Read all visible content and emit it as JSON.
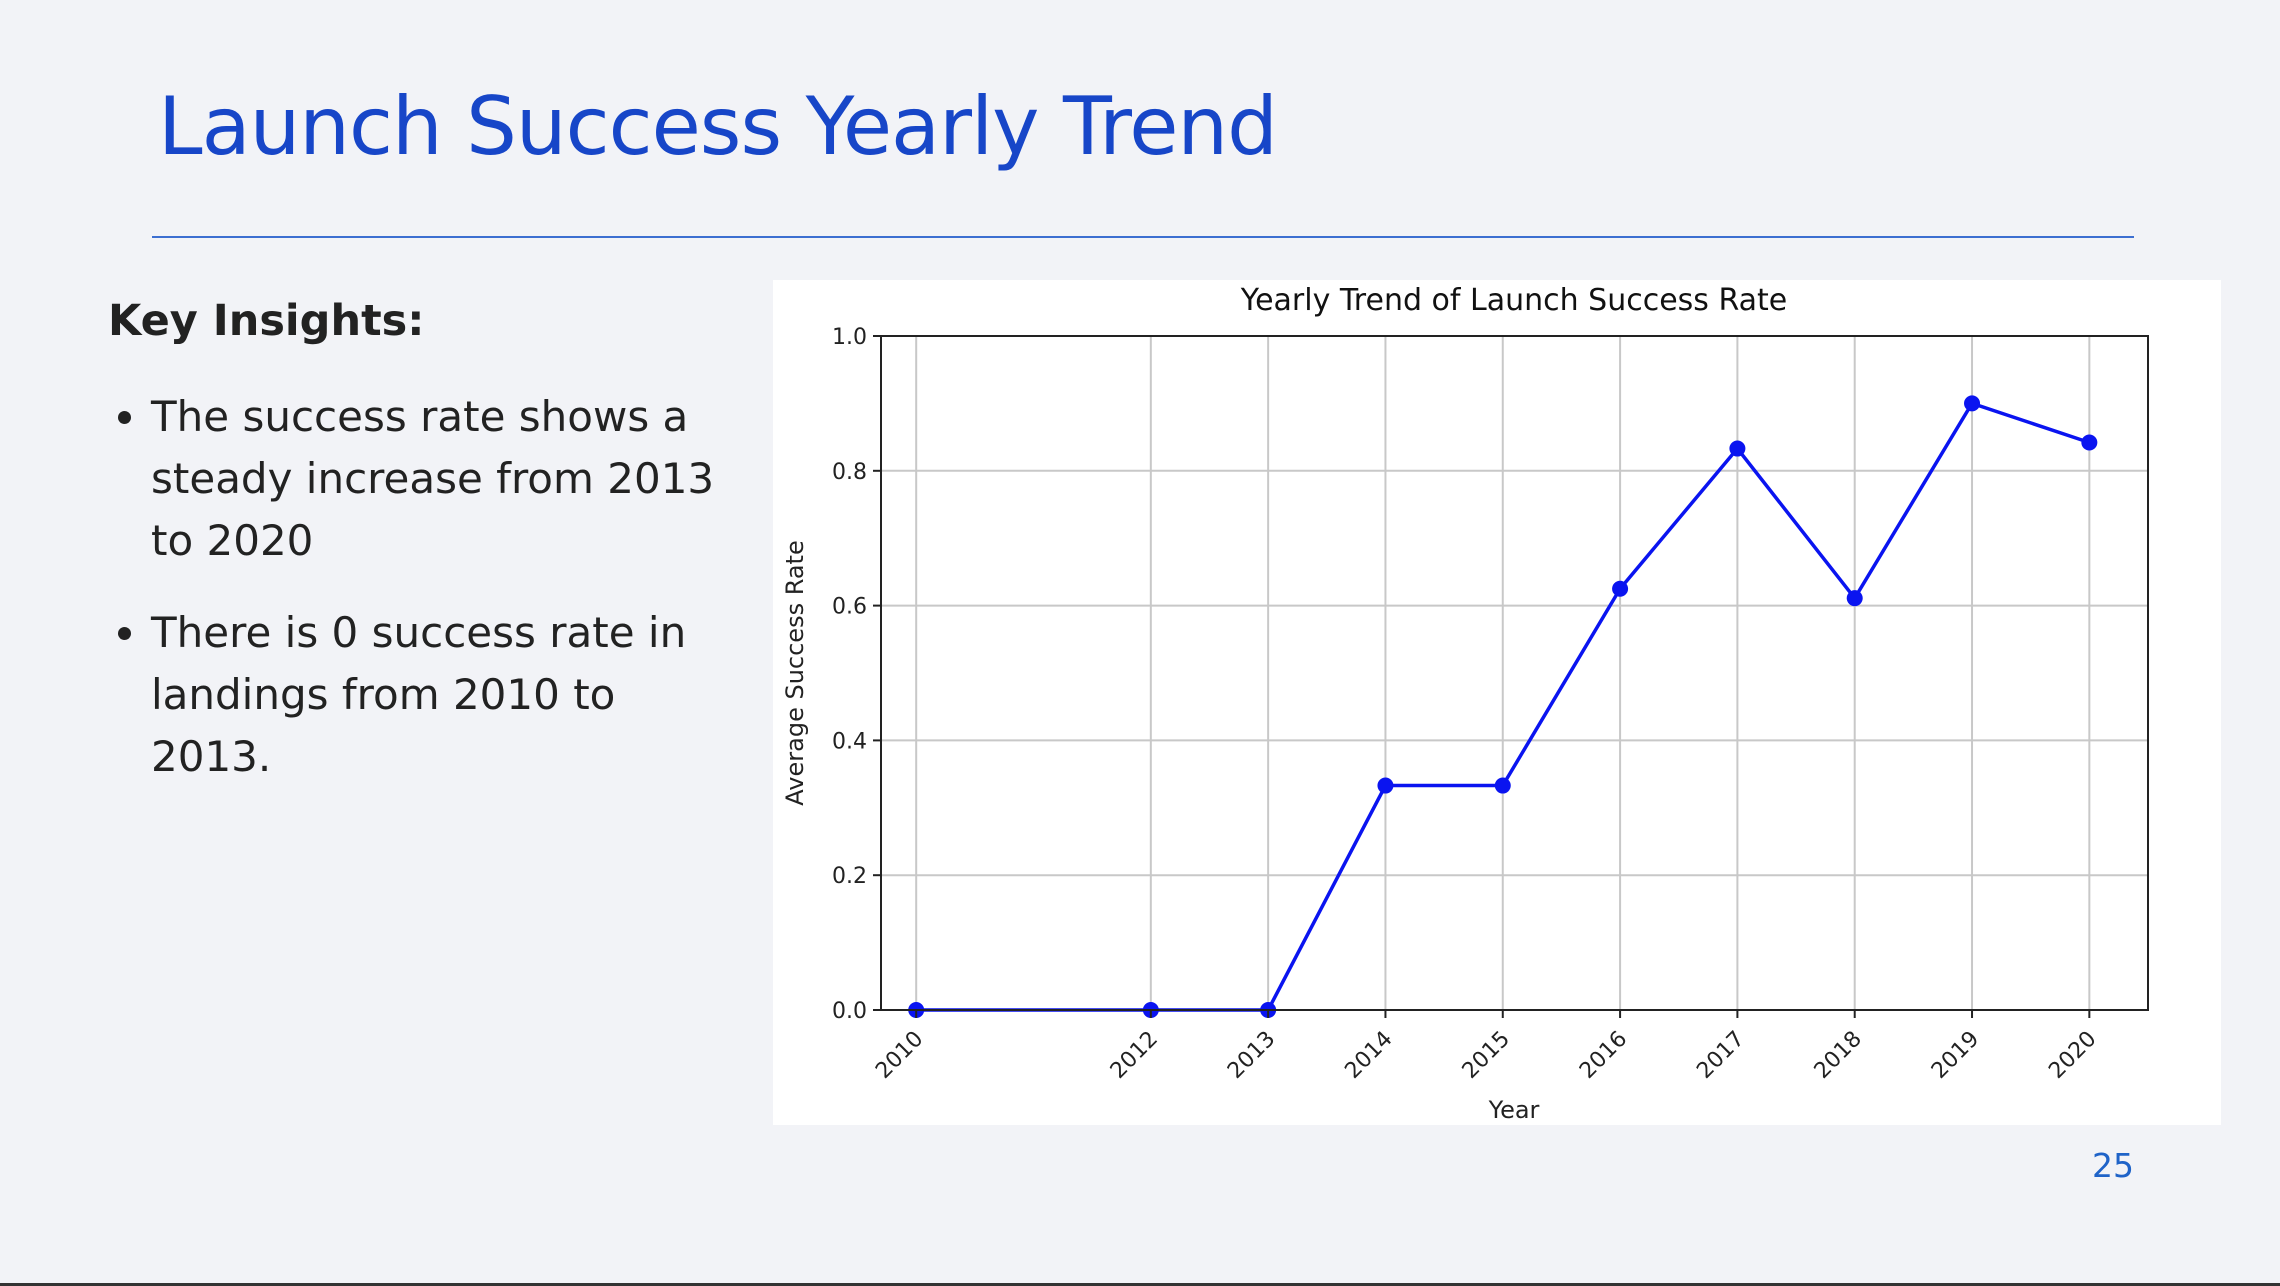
{
  "slide": {
    "title": "Launch Success Yearly Trend",
    "page_number": "25"
  },
  "insights": {
    "heading": "Key Insights:",
    "bullets": [
      "The success rate shows a steady increase from 2013 to 2020",
      "There is 0 success rate in landings from 2010 to 2013."
    ]
  },
  "chart_data": {
    "type": "line",
    "title": "Yearly Trend of Launch Success Rate",
    "xlabel": "Year",
    "ylabel": "Average Success Rate",
    "x": [
      2010,
      2012,
      2013,
      2014,
      2015,
      2016,
      2017,
      2018,
      2019,
      2020
    ],
    "x_tick_labels": [
      "2010",
      "2012",
      "2013",
      "2014",
      "2015",
      "2016",
      "2017",
      "2018",
      "2019",
      "2020"
    ],
    "y_ticks": [
      0.0,
      0.2,
      0.4,
      0.6,
      0.8,
      1.0
    ],
    "y_tick_labels": [
      "0.0",
      "0.2",
      "0.4",
      "0.6",
      "0.8",
      "1.0"
    ],
    "ylim": [
      0,
      1.0
    ],
    "grid": true,
    "series": [
      {
        "values": [
          0.0,
          0.0,
          0.0,
          0.333,
          0.333,
          0.625,
          0.833,
          0.611,
          0.9,
          0.842
        ],
        "color": "#0a14f0",
        "marker": "circle"
      }
    ]
  }
}
